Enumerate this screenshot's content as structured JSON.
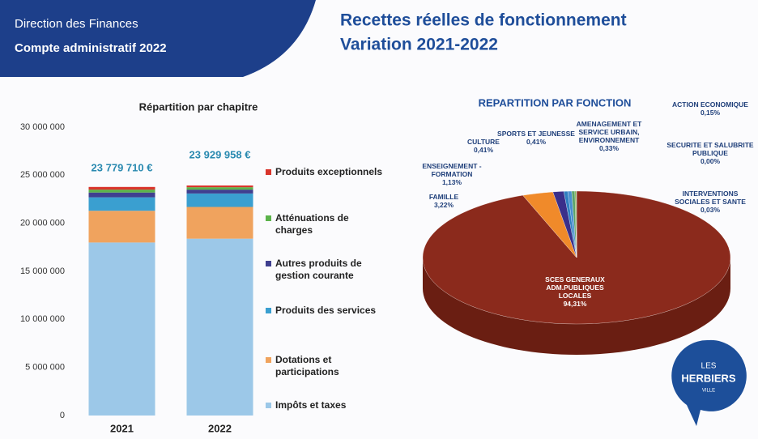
{
  "header": {
    "department": "Direction des Finances",
    "document": "Compte administratif 2022",
    "title": "Recettes réelles de fonctionnement",
    "subtitle": "Variation 2021-2022"
  },
  "logo": {
    "line1": "LES",
    "line2": "HERBIERS",
    "line3": "VILLE"
  },
  "chart_data": [
    {
      "type": "bar",
      "stacked": true,
      "title": "Répartition par chapitre",
      "categories": [
        "2021",
        "2022"
      ],
      "total_labels": [
        "23 779 710 €",
        "23 929 958 €"
      ],
      "series": [
        {
          "name": "Impôts et taxes",
          "color": "#9cc8e8",
          "values": [
            18000000,
            18400000
          ]
        },
        {
          "name": "Dotations et participations",
          "color": "#f0a35e",
          "values": [
            3300000,
            3300000
          ]
        },
        {
          "name": "Produits des services",
          "color": "#3a9fd0",
          "values": [
            1400000,
            1400000
          ]
        },
        {
          "name": "Autres produits de gestion courante",
          "color": "#3f3f8f",
          "values": [
            500000,
            400000
          ]
        },
        {
          "name": "Atténuations de charges",
          "color": "#5bb34a",
          "values": [
            300000,
            250000
          ]
        },
        {
          "name": "Produits exceptionnels",
          "color": "#d9342b",
          "values": [
            279710,
            179958
          ]
        }
      ],
      "ylim": [
        0,
        30000000
      ],
      "yticks": [
        0,
        {
          "value": 5000000,
          "label": "5 000 000"
        },
        {
          "value": 10000000,
          "label": "10 000 000"
        },
        {
          "value": 15000000,
          "label": "15 000 000"
        },
        {
          "value": 20000000,
          "label": "20 000 000"
        },
        {
          "value": 25000000,
          "label": "25 000 000"
        },
        {
          "value": 30000000,
          "label": "30 000 000"
        }
      ],
      "grid": false
    },
    {
      "type": "pie",
      "title": "REPARTITION PAR FONCTION",
      "categories": [
        "SCES GENERAUX ADM.PUBLIQUES LOCALES",
        "FAMILLE",
        "ENSEIGNEMENT - FORMATION",
        "CULTURE",
        "SPORTS ET JEUNESSE",
        "AMENAGEMENT ET SERVICE URBAIN, ENVIRONNEMENT",
        "ACTION ECONOMIQUE",
        "SECURITE ET SALUBRITE PUBLIQUE",
        "INTERVENTIONS SOCIALES ET SANTE"
      ],
      "values": [
        94.31,
        3.22,
        1.13,
        0.41,
        0.41,
        0.33,
        0.15,
        0.0,
        0.03
      ],
      "value_labels": [
        "94,31%",
        "3,22%",
        "1,13%",
        "0,41%",
        "0,41%",
        "0,33%",
        "0,15%",
        "0,00%",
        "0,03%"
      ],
      "colors": [
        "#8b2a1c",
        "#f08a2a",
        "#3a2f8a",
        "#2f7fc0",
        "#4a8fd0",
        "#5aa36a",
        "#7fb24a",
        "#c04040",
        "#2a6fa0"
      ]
    }
  ]
}
